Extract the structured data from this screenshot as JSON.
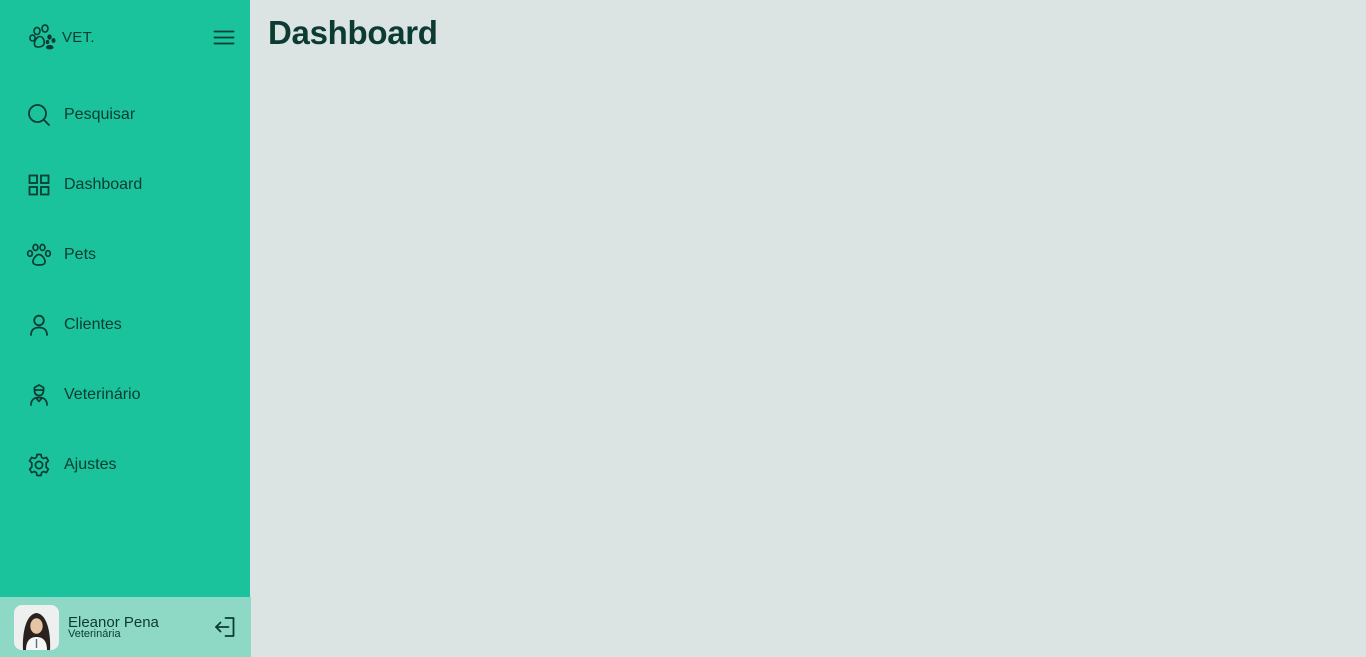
{
  "brand": {
    "name": "VET.",
    "icon": "paw-icon"
  },
  "colors": {
    "sidebar_bg": "#1ac39b",
    "content_bg": "#dce4e3",
    "footer_bg": "#8dd9c6",
    "text_dark": "#0b3b33"
  },
  "sidebar": {
    "items": [
      {
        "label": "Pesquisar",
        "icon": "search-icon"
      },
      {
        "label": "Dashboard",
        "icon": "grid-icon"
      },
      {
        "label": "Pets",
        "icon": "paw-icon"
      },
      {
        "label": "Clientes",
        "icon": "user-icon"
      },
      {
        "label": "Veterinário",
        "icon": "vet-icon"
      },
      {
        "label": "Ajustes",
        "icon": "gear-icon"
      }
    ]
  },
  "user": {
    "name": "Eleanor Pena",
    "role": "Veterinária"
  },
  "main": {
    "title": "Dashboard"
  }
}
